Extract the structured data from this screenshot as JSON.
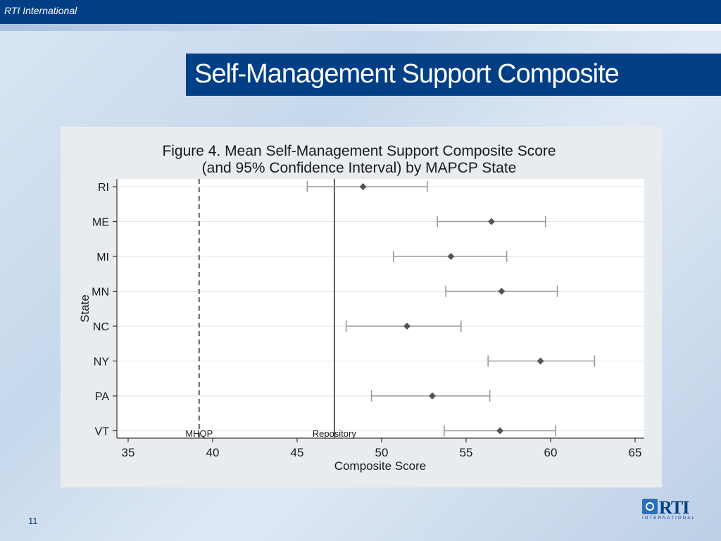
{
  "header": {
    "organization": "RTI International"
  },
  "slide": {
    "title": "Self-Management Support Composite",
    "number": "11"
  },
  "logo": {
    "text": "RTI",
    "subtext": "INTERNATIONAL"
  },
  "colors": {
    "brand": "#003f86",
    "marker": "#555555",
    "ci": "#9a9a9a"
  },
  "chart_data": {
    "type": "scatter",
    "title": "Figure 4. Mean Self-Management Support Composite Score",
    "subtitle": "(and 95% Confidence Interval) by MAPCP State",
    "xlabel": "Composite Score",
    "ylabel": "State",
    "xlim": [
      35,
      65
    ],
    "xticks": [
      35,
      40,
      45,
      50,
      55,
      60,
      65
    ],
    "categories": [
      "RI",
      "ME",
      "MI",
      "MN",
      "NC",
      "NY",
      "PA",
      "VT"
    ],
    "series": [
      {
        "means": [
          48.9,
          56.5,
          54.1,
          57.1,
          51.5,
          59.4,
          53.0,
          57.0
        ],
        "ci_low": [
          45.6,
          53.3,
          50.7,
          53.8,
          47.9,
          56.3,
          49.4,
          53.7
        ],
        "ci_high": [
          52.7,
          59.7,
          57.4,
          60.4,
          54.7,
          62.6,
          56.4,
          60.3
        ]
      }
    ],
    "reference_lines": [
      {
        "label": "MHQP",
        "x": 39.2,
        "style": "dashed"
      },
      {
        "label": "Repository",
        "x": 47.2,
        "style": "solid"
      }
    ],
    "grid": true
  }
}
